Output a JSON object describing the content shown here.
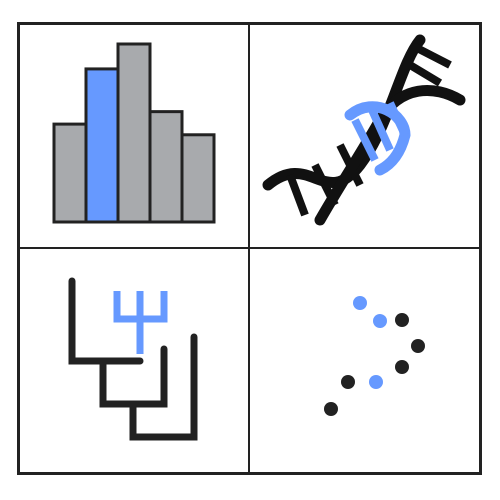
{
  "grid": {
    "rows": 2,
    "columns": 2,
    "border_color": "#222222",
    "background": "#ffffff"
  },
  "tiles": [
    {
      "icon": "histogram-icon",
      "highlight_index": 1
    },
    {
      "icon": "dna-helix-icon"
    },
    {
      "icon": "phylogenetic-tree-icon"
    },
    {
      "icon": "scatter-dots-icon"
    }
  ],
  "colors": {
    "accent_blue": "#6699ff",
    "bar_gray": "#a8aaad",
    "ink": "#222222"
  },
  "histogram": {
    "bar_heights_relative": [
      0.55,
      0.86,
      1.0,
      0.62,
      0.49
    ],
    "highlighted_bar": 1
  }
}
